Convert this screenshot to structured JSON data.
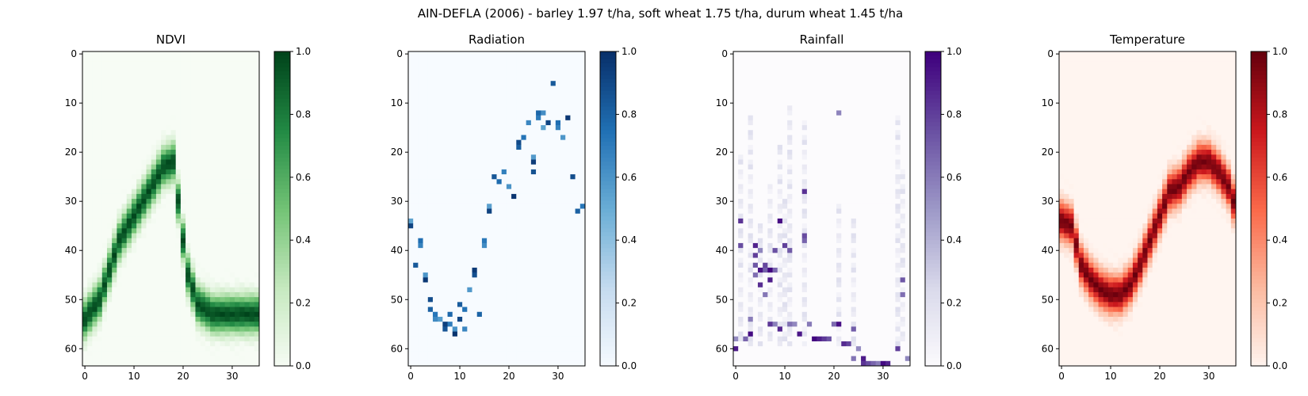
{
  "figure": {
    "suptitle": "AIN-DEFLA (2006) - barley 1.97 t/ha, soft wheat 1.75 t/ha, durum wheat 1.45 t/ha"
  },
  "chart_data": [
    {
      "type": "heatmap",
      "title": "NDVI",
      "colormap": "Greens",
      "colors": [
        "#f7fcf5",
        "#c7e9c0",
        "#74c476",
        "#238b45",
        "#00441b"
      ],
      "xlim": [
        0,
        35
      ],
      "ylim": [
        0,
        63
      ],
      "xticks": [
        0,
        10,
        20,
        30
      ],
      "yticks": [
        0,
        10,
        20,
        30,
        40,
        50,
        60
      ],
      "colorbar": {
        "range": [
          0,
          1
        ],
        "ticks": [
          "0.0",
          "0.2",
          "0.4",
          "0.6",
          "0.8",
          "1.0"
        ]
      },
      "pattern": "band",
      "path": [
        [
          0,
          54
        ],
        [
          3,
          50
        ],
        [
          5,
          44
        ],
        [
          7,
          38
        ],
        [
          10,
          33
        ],
        [
          13,
          28
        ],
        [
          16,
          23
        ],
        [
          18,
          22
        ],
        [
          20,
          38
        ],
        [
          21,
          45
        ],
        [
          23,
          51
        ],
        [
          26,
          53
        ],
        [
          30,
          53
        ],
        [
          35,
          53
        ]
      ]
    },
    {
      "type": "heatmap",
      "title": "Radiation",
      "colormap": "Blues",
      "colors": [
        "#f7fbff",
        "#c6dbef",
        "#6baed6",
        "#2171b5",
        "#08306b"
      ],
      "xlim": [
        0,
        35
      ],
      "ylim": [
        0,
        63
      ],
      "xticks": [
        0,
        10,
        20,
        30
      ],
      "yticks": [
        0,
        10,
        20,
        30,
        40,
        50,
        60
      ],
      "colorbar": {
        "range": [
          0,
          1
        ],
        "ticks": [
          "0.0",
          "0.2",
          "0.4",
          "0.6",
          "0.8",
          "1.0"
        ]
      },
      "pattern": "sparse",
      "points": [
        [
          0,
          34
        ],
        [
          0,
          35
        ],
        [
          1,
          43
        ],
        [
          2,
          38
        ],
        [
          2,
          39
        ],
        [
          3,
          45
        ],
        [
          3,
          46
        ],
        [
          4,
          50
        ],
        [
          4,
          52
        ],
        [
          5,
          53
        ],
        [
          5,
          54
        ],
        [
          6,
          54
        ],
        [
          7,
          55
        ],
        [
          7,
          56
        ],
        [
          8,
          53
        ],
        [
          8,
          55
        ],
        [
          9,
          56
        ],
        [
          9,
          57
        ],
        [
          10,
          54
        ],
        [
          10,
          51
        ],
        [
          11,
          52
        ],
        [
          11,
          56
        ],
        [
          12,
          48
        ],
        [
          13,
          44
        ],
        [
          13,
          45
        ],
        [
          14,
          53
        ],
        [
          15,
          38
        ],
        [
          15,
          39
        ],
        [
          16,
          31
        ],
        [
          16,
          32
        ],
        [
          17,
          25
        ],
        [
          18,
          26
        ],
        [
          19,
          24
        ],
        [
          20,
          27
        ],
        [
          21,
          29
        ],
        [
          22,
          18
        ],
        [
          22,
          19
        ],
        [
          23,
          17
        ],
        [
          24,
          14
        ],
        [
          25,
          21
        ],
        [
          25,
          22
        ],
        [
          25,
          24
        ],
        [
          26,
          12
        ],
        [
          26,
          13
        ],
        [
          27,
          12
        ],
        [
          27,
          15
        ],
        [
          28,
          14
        ],
        [
          29,
          6
        ],
        [
          30,
          14
        ],
        [
          30,
          15
        ],
        [
          31,
          17
        ],
        [
          32,
          13
        ],
        [
          33,
          25
        ],
        [
          34,
          32
        ],
        [
          35,
          31
        ]
      ]
    },
    {
      "type": "heatmap",
      "title": "Rainfall",
      "colormap": "Purples",
      "colors": [
        "#fcfbfd",
        "#dadaeb",
        "#9e9ac8",
        "#6a51a3",
        "#3f007d"
      ],
      "xlim": [
        0,
        35
      ],
      "ylim": [
        0,
        63
      ],
      "xticks": [
        0,
        10,
        20,
        30
      ],
      "yticks": [
        0,
        10,
        20,
        30,
        40,
        50,
        60
      ],
      "colorbar": {
        "range": [
          0,
          1
        ],
        "ticks": [
          "0.0",
          "0.2",
          "0.4",
          "0.6",
          "0.8",
          "1.0"
        ]
      },
      "pattern": "columns",
      "points": [
        [
          0,
          58
        ],
        [
          0,
          60
        ],
        [
          1,
          34
        ],
        [
          1,
          39
        ],
        [
          2,
          58
        ],
        [
          3,
          54
        ],
        [
          3,
          57
        ],
        [
          4,
          39
        ],
        [
          4,
          41
        ],
        [
          4,
          43
        ],
        [
          4,
          45
        ],
        [
          5,
          40
        ],
        [
          5,
          44
        ],
        [
          5,
          47
        ],
        [
          6,
          43
        ],
        [
          6,
          44
        ],
        [
          6,
          49
        ],
        [
          7,
          44
        ],
        [
          7,
          46
        ],
        [
          7,
          55
        ],
        [
          8,
          40
        ],
        [
          8,
          44
        ],
        [
          8,
          55
        ],
        [
          9,
          34
        ],
        [
          9,
          56
        ],
        [
          10,
          39
        ],
        [
          11,
          40
        ],
        [
          11,
          55
        ],
        [
          12,
          55
        ],
        [
          13,
          57
        ],
        [
          14,
          28
        ],
        [
          14,
          37
        ],
        [
          14,
          38
        ],
        [
          15,
          55
        ],
        [
          16,
          58
        ],
        [
          17,
          58
        ],
        [
          18,
          58
        ],
        [
          19,
          58
        ],
        [
          20,
          55
        ],
        [
          21,
          12
        ],
        [
          21,
          55
        ],
        [
          22,
          59
        ],
        [
          23,
          59
        ],
        [
          24,
          56
        ],
        [
          24,
          62
        ],
        [
          25,
          60
        ],
        [
          26,
          62
        ],
        [
          26,
          63
        ],
        [
          27,
          63
        ],
        [
          28,
          63
        ],
        [
          29,
          63
        ],
        [
          30,
          63
        ],
        [
          31,
          63
        ],
        [
          33,
          60
        ],
        [
          34,
          46
        ],
        [
          34,
          49
        ],
        [
          35,
          62
        ]
      ]
    },
    {
      "type": "heatmap",
      "title": "Temperature",
      "colormap": "Reds",
      "colors": [
        "#fff5f0",
        "#fcbba1",
        "#fb6a4a",
        "#cb181d",
        "#67000d"
      ],
      "xlim": [
        0,
        35
      ],
      "ylim": [
        0,
        63
      ],
      "xticks": [
        0,
        10,
        20,
        30
      ],
      "yticks": [
        0,
        10,
        20,
        30,
        40,
        50,
        60
      ],
      "colorbar": {
        "range": [
          0,
          1
        ],
        "ticks": [
          "0.0",
          "0.2",
          "0.4",
          "0.6",
          "0.8",
          "1.0"
        ]
      },
      "pattern": "band",
      "path": [
        [
          0,
          34
        ],
        [
          2,
          35
        ],
        [
          4,
          43
        ],
        [
          6,
          46
        ],
        [
          8,
          48
        ],
        [
          10,
          49
        ],
        [
          12,
          49
        ],
        [
          14,
          47
        ],
        [
          16,
          43
        ],
        [
          18,
          38
        ],
        [
          20,
          33
        ],
        [
          22,
          28
        ],
        [
          24,
          27
        ],
        [
          26,
          24
        ],
        [
          28,
          22
        ],
        [
          30,
          22
        ],
        [
          32,
          24
        ],
        [
          34,
          27
        ],
        [
          35,
          30
        ]
      ]
    }
  ]
}
